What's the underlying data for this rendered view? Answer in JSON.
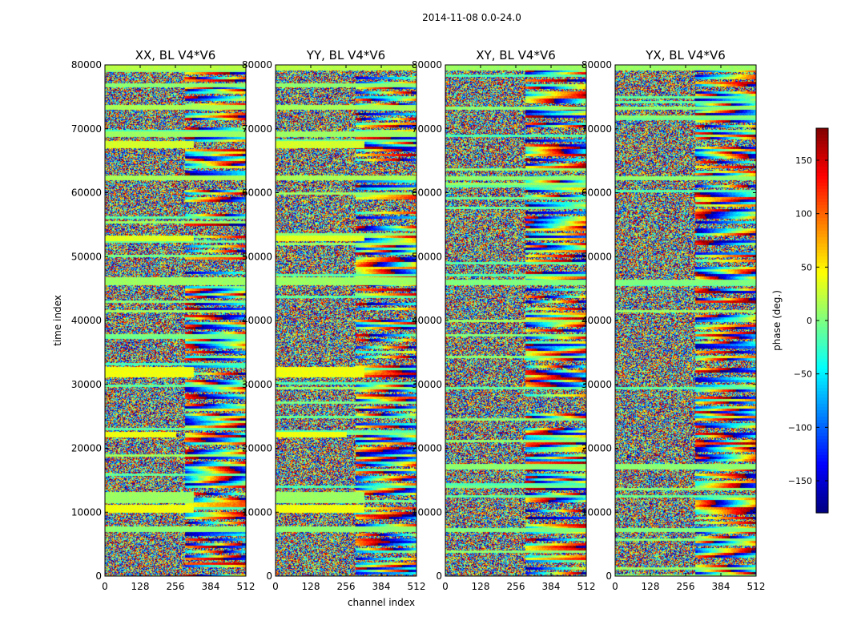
{
  "figure": {
    "suptitle": "2014-11-08 0.0-24.0",
    "xlabel": "channel index",
    "ylabel": "time index",
    "colorbar_label": "phase (deg.)"
  },
  "chart_data": {
    "type": "heatmap",
    "colormap": "jet",
    "panels": [
      {
        "title": "XX, BL V4*V6"
      },
      {
        "title": "YY, BL V4*V6"
      },
      {
        "title": "XY, BL V4*V6"
      },
      {
        "title": "YX, BL V4*V6"
      }
    ],
    "x": {
      "label": "channel index",
      "lim": [
        0,
        512
      ],
      "ticks": [
        0,
        128,
        256,
        384,
        512
      ],
      "tick_labels": [
        "0",
        "128",
        "256",
        "384",
        "512"
      ]
    },
    "y": {
      "label": "time index",
      "lim": [
        0,
        80000
      ],
      "ticks": [
        0,
        10000,
        20000,
        30000,
        40000,
        50000,
        60000,
        70000,
        80000
      ],
      "tick_labels": [
        "0",
        "10000",
        "20000",
        "30000",
        "40000",
        "50000",
        "60000",
        "70000",
        "80000"
      ]
    },
    "colorbar": {
      "label": "phase (deg.)",
      "lim": [
        -180,
        180
      ],
      "ticks": [
        -150,
        -100,
        -50,
        0,
        50,
        100,
        150
      ],
      "tick_labels": [
        "−150",
        "−100",
        "−50",
        "0",
        "50",
        "100",
        "150"
      ]
    },
    "flat_bands_parallel_hands": [
      {
        "y": [
          79200,
          80000
        ],
        "phase": 20,
        "ch": [
          0,
          512
        ]
      },
      {
        "y": [
          76500,
          77200
        ],
        "phase": 5,
        "ch": [
          0,
          512
        ]
      },
      {
        "y": [
          73000,
          73800
        ],
        "phase": 15,
        "ch": [
          0,
          512
        ]
      },
      {
        "y": [
          68800,
          69600
        ],
        "phase": 10,
        "ch": [
          0,
          512
        ]
      },
      {
        "y": [
          67000,
          68200
        ],
        "phase": 30,
        "ch": [
          0,
          320
        ]
      },
      {
        "y": [
          62000,
          62800
        ],
        "phase": 15,
        "ch": [
          0,
          512
        ]
      },
      {
        "y": [
          52500,
          53400
        ],
        "phase": 35,
        "ch": [
          0,
          320
        ]
      },
      {
        "y": [
          45600,
          46800
        ],
        "phase": 10,
        "ch": [
          0,
          512
        ]
      },
      {
        "y": [
          31200,
          32800
        ],
        "phase": 40,
        "ch": [
          0,
          320
        ]
      },
      {
        "y": [
          21800,
          22600
        ],
        "phase": 40,
        "ch": [
          0,
          256
        ]
      },
      {
        "y": [
          10000,
          11200
        ],
        "phase": 40,
        "ch": [
          0,
          320
        ]
      },
      {
        "y": [
          11500,
          13200
        ],
        "phase": 10,
        "ch": [
          0,
          320
        ]
      },
      {
        "y": [
          7000,
          7800
        ],
        "phase": 5,
        "ch": [
          0,
          512
        ]
      }
    ],
    "flat_bands_cross_hands": [
      {
        "y": [
          79200,
          80000
        ],
        "phase": 10,
        "ch": [
          0,
          512
        ]
      },
      {
        "y": [
          73000,
          73600
        ],
        "phase": 5,
        "ch": [
          0,
          512
        ]
      },
      {
        "y": [
          62000,
          62600
        ],
        "phase": 5,
        "ch": [
          0,
          512
        ]
      },
      {
        "y": [
          45600,
          46400
        ],
        "phase": 0,
        "ch": [
          0,
          512
        ]
      },
      {
        "y": [
          16800,
          17600
        ],
        "phase": 5,
        "ch": [
          0,
          512
        ]
      },
      {
        "y": [
          7000,
          7600
        ],
        "phase": 0,
        "ch": [
          0,
          512
        ]
      }
    ]
  }
}
